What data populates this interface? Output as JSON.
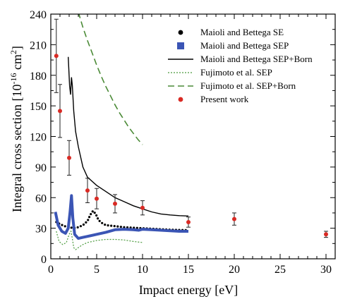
{
  "chart_data": {
    "type": "line",
    "xlabel": "Impact energy [eV]",
    "ylabel_main": "Integral cross section [10",
    "ylabel_exp": "-16",
    "ylabel_unit": " cm",
    "ylabel_unit_exp": "2",
    "ylabel_close": "]",
    "xlim": [
      0,
      31
    ],
    "ylim": [
      0,
      240
    ],
    "xticks": [
      0,
      5,
      10,
      15,
      20,
      25,
      30
    ],
    "yticks": [
      0,
      30,
      60,
      90,
      120,
      150,
      180,
      210,
      240
    ],
    "legend_position": "top-right",
    "series": [
      {
        "name": "Maioli and Bettega SE",
        "style": "dotted-black-circles",
        "color": "#000000",
        "x": [
          0.6,
          1.0,
          1.5,
          2.0,
          2.5,
          3.0,
          3.5,
          4.0,
          4.3,
          4.6,
          4.9,
          5.2,
          5.6,
          6.0,
          7.0,
          8.0,
          9.0,
          10.0,
          11.0,
          12.0,
          13.0,
          14.0,
          15.0
        ],
        "y": [
          36,
          34,
          32,
          31,
          30,
          31,
          33,
          37,
          43,
          47,
          44,
          38,
          35,
          33,
          32,
          31,
          30.5,
          30,
          29.5,
          29,
          28.5,
          28.3,
          28
        ]
      },
      {
        "name": "Maioli and Bettega SEP",
        "style": "thick-blue-line",
        "color": "#3b55b5",
        "x": [
          0.5,
          0.8,
          1.2,
          1.6,
          1.9,
          2.1,
          2.25,
          2.4,
          2.6,
          3.0,
          3.5,
          4.0,
          5.0,
          6.0,
          7.0,
          8.0,
          9.0,
          9.6,
          10.0,
          11.0,
          12.0,
          13.0,
          14.0,
          15.0
        ],
        "y": [
          46,
          33,
          27,
          25,
          30,
          46,
          62,
          40,
          24,
          20,
          21,
          22,
          24,
          26,
          28.5,
          29,
          28.5,
          28,
          29,
          28.5,
          28,
          27.5,
          27,
          27
        ]
      },
      {
        "name": "Maioli and Bettega SEP+Born",
        "style": "solid-black-line",
        "color": "#000000",
        "x": [
          1.9,
          2.05,
          2.15,
          2.25,
          2.35,
          2.5,
          2.7,
          3.0,
          3.5,
          4.0,
          5.0,
          6.0,
          7.0,
          8.0,
          9.0,
          10.0,
          11.0,
          12.0,
          13.0,
          14.0,
          15.0
        ],
        "y": [
          198,
          170,
          161,
          178,
          170,
          145,
          125,
          110,
          90,
          80,
          72,
          66,
          60,
          56,
          52,
          49,
          46,
          44,
          43,
          42.3,
          42
        ]
      },
      {
        "name": "Fujimoto et al. SEP",
        "style": "dotted-green-line",
        "color": "#4a9a3c",
        "x": [
          0.6,
          0.9,
          1.3,
          1.7,
          2.0,
          2.2,
          2.35,
          2.5,
          2.7,
          3.0,
          3.5,
          4.0,
          5.0,
          6.0,
          7.0,
          8.0,
          9.0,
          10.0
        ],
        "y": [
          27,
          17,
          14,
          16,
          24,
          27,
          20,
          11,
          9,
          11,
          14,
          16,
          18,
          19,
          19,
          18.5,
          17,
          16
        ]
      },
      {
        "name": "Fujimoto et al. SEP+Born",
        "style": "dashed-green-line",
        "color": "#4a8a36",
        "x": [
          3.0,
          3.5,
          4.0,
          4.5,
          5.0,
          5.5,
          6.0,
          6.5,
          7.0,
          7.5,
          8.0,
          8.5,
          9.0,
          9.5,
          10.0
        ],
        "y": [
          242,
          227,
          214,
          202,
          190,
          179,
          169,
          160,
          151,
          143,
          136,
          129,
          123,
          117,
          112
        ]
      },
      {
        "name": "Present work",
        "style": "red-points-with-error-bars",
        "color": "#d92a24",
        "x": [
          0.6,
          1.0,
          2.0,
          4.0,
          5.0,
          7.0,
          10.0,
          15.0,
          20.0,
          30.0
        ],
        "y": [
          199,
          145,
          99,
          67,
          59,
          54,
          50,
          36,
          39,
          24
        ],
        "err": [
          36,
          26,
          17,
          12,
          10,
          9,
          7,
          5,
          6,
          3
        ]
      }
    ]
  }
}
